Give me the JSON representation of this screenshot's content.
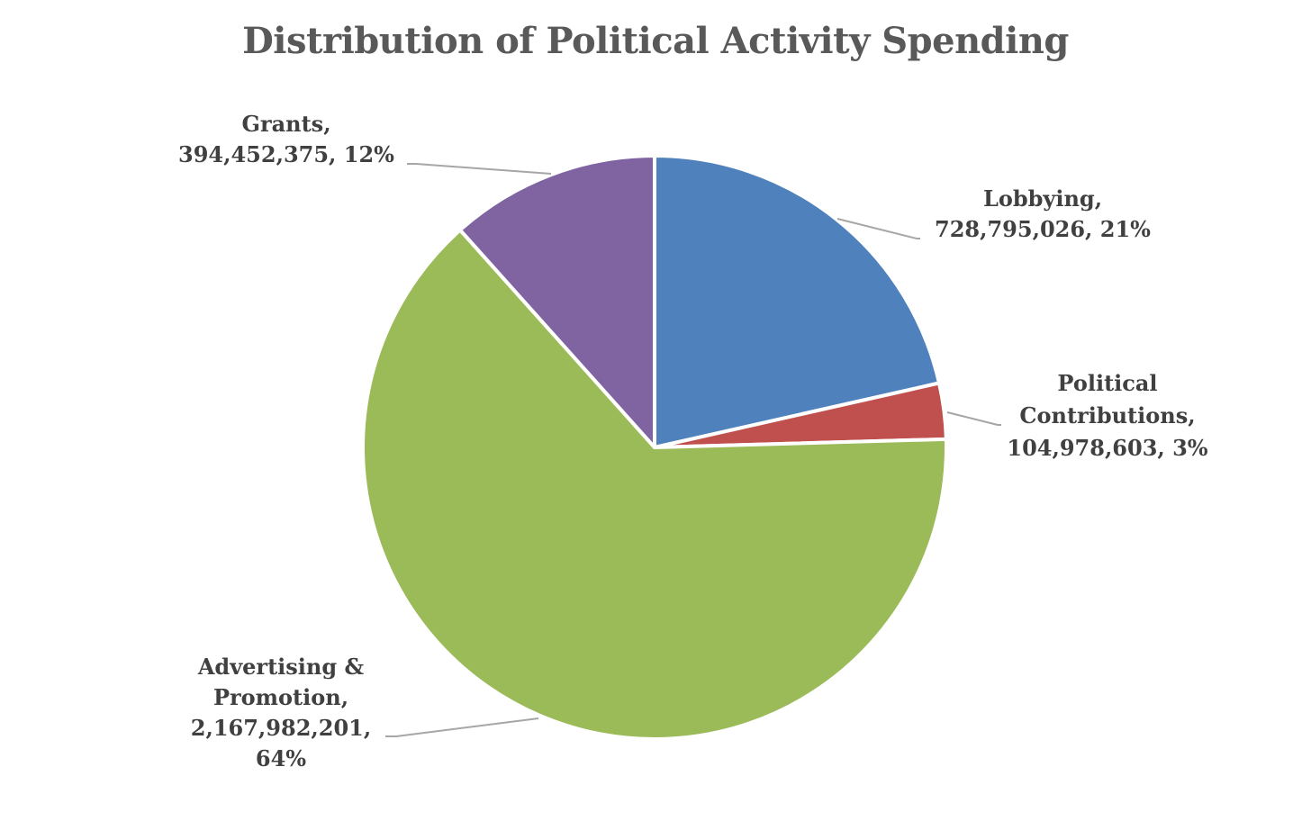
{
  "chart_data": {
    "type": "pie",
    "title": "Distribution of Political Activity Spending",
    "slices": [
      {
        "name": "Lobbying",
        "value": 728795026,
        "percent": 21,
        "color": "#4f81bd",
        "label_lines": [
          "Lobbying,",
          "728,795,026, 21%"
        ]
      },
      {
        "name": "Political Contributions",
        "value": 104978603,
        "percent": 3,
        "color": "#c0504d",
        "label_lines": [
          "Political",
          "Contributions,",
          "104,978,603, 3%"
        ]
      },
      {
        "name": "Advertising & Promotion",
        "value": 2167982201,
        "percent": 64,
        "color": "#9bbb59",
        "label_lines": [
          "Advertising &",
          "Promotion,",
          "2,167,982,201,",
          "64%"
        ]
      },
      {
        "name": "Grants",
        "value": 394452375,
        "percent": 12,
        "color": "#8064a2",
        "label_lines": [
          "Grants,",
          "394,452,375, 12%"
        ]
      }
    ],
    "start_angle": "12 o'clock",
    "direction": "clockwise",
    "legend": "none",
    "data_labels": "outside with leader lines"
  }
}
